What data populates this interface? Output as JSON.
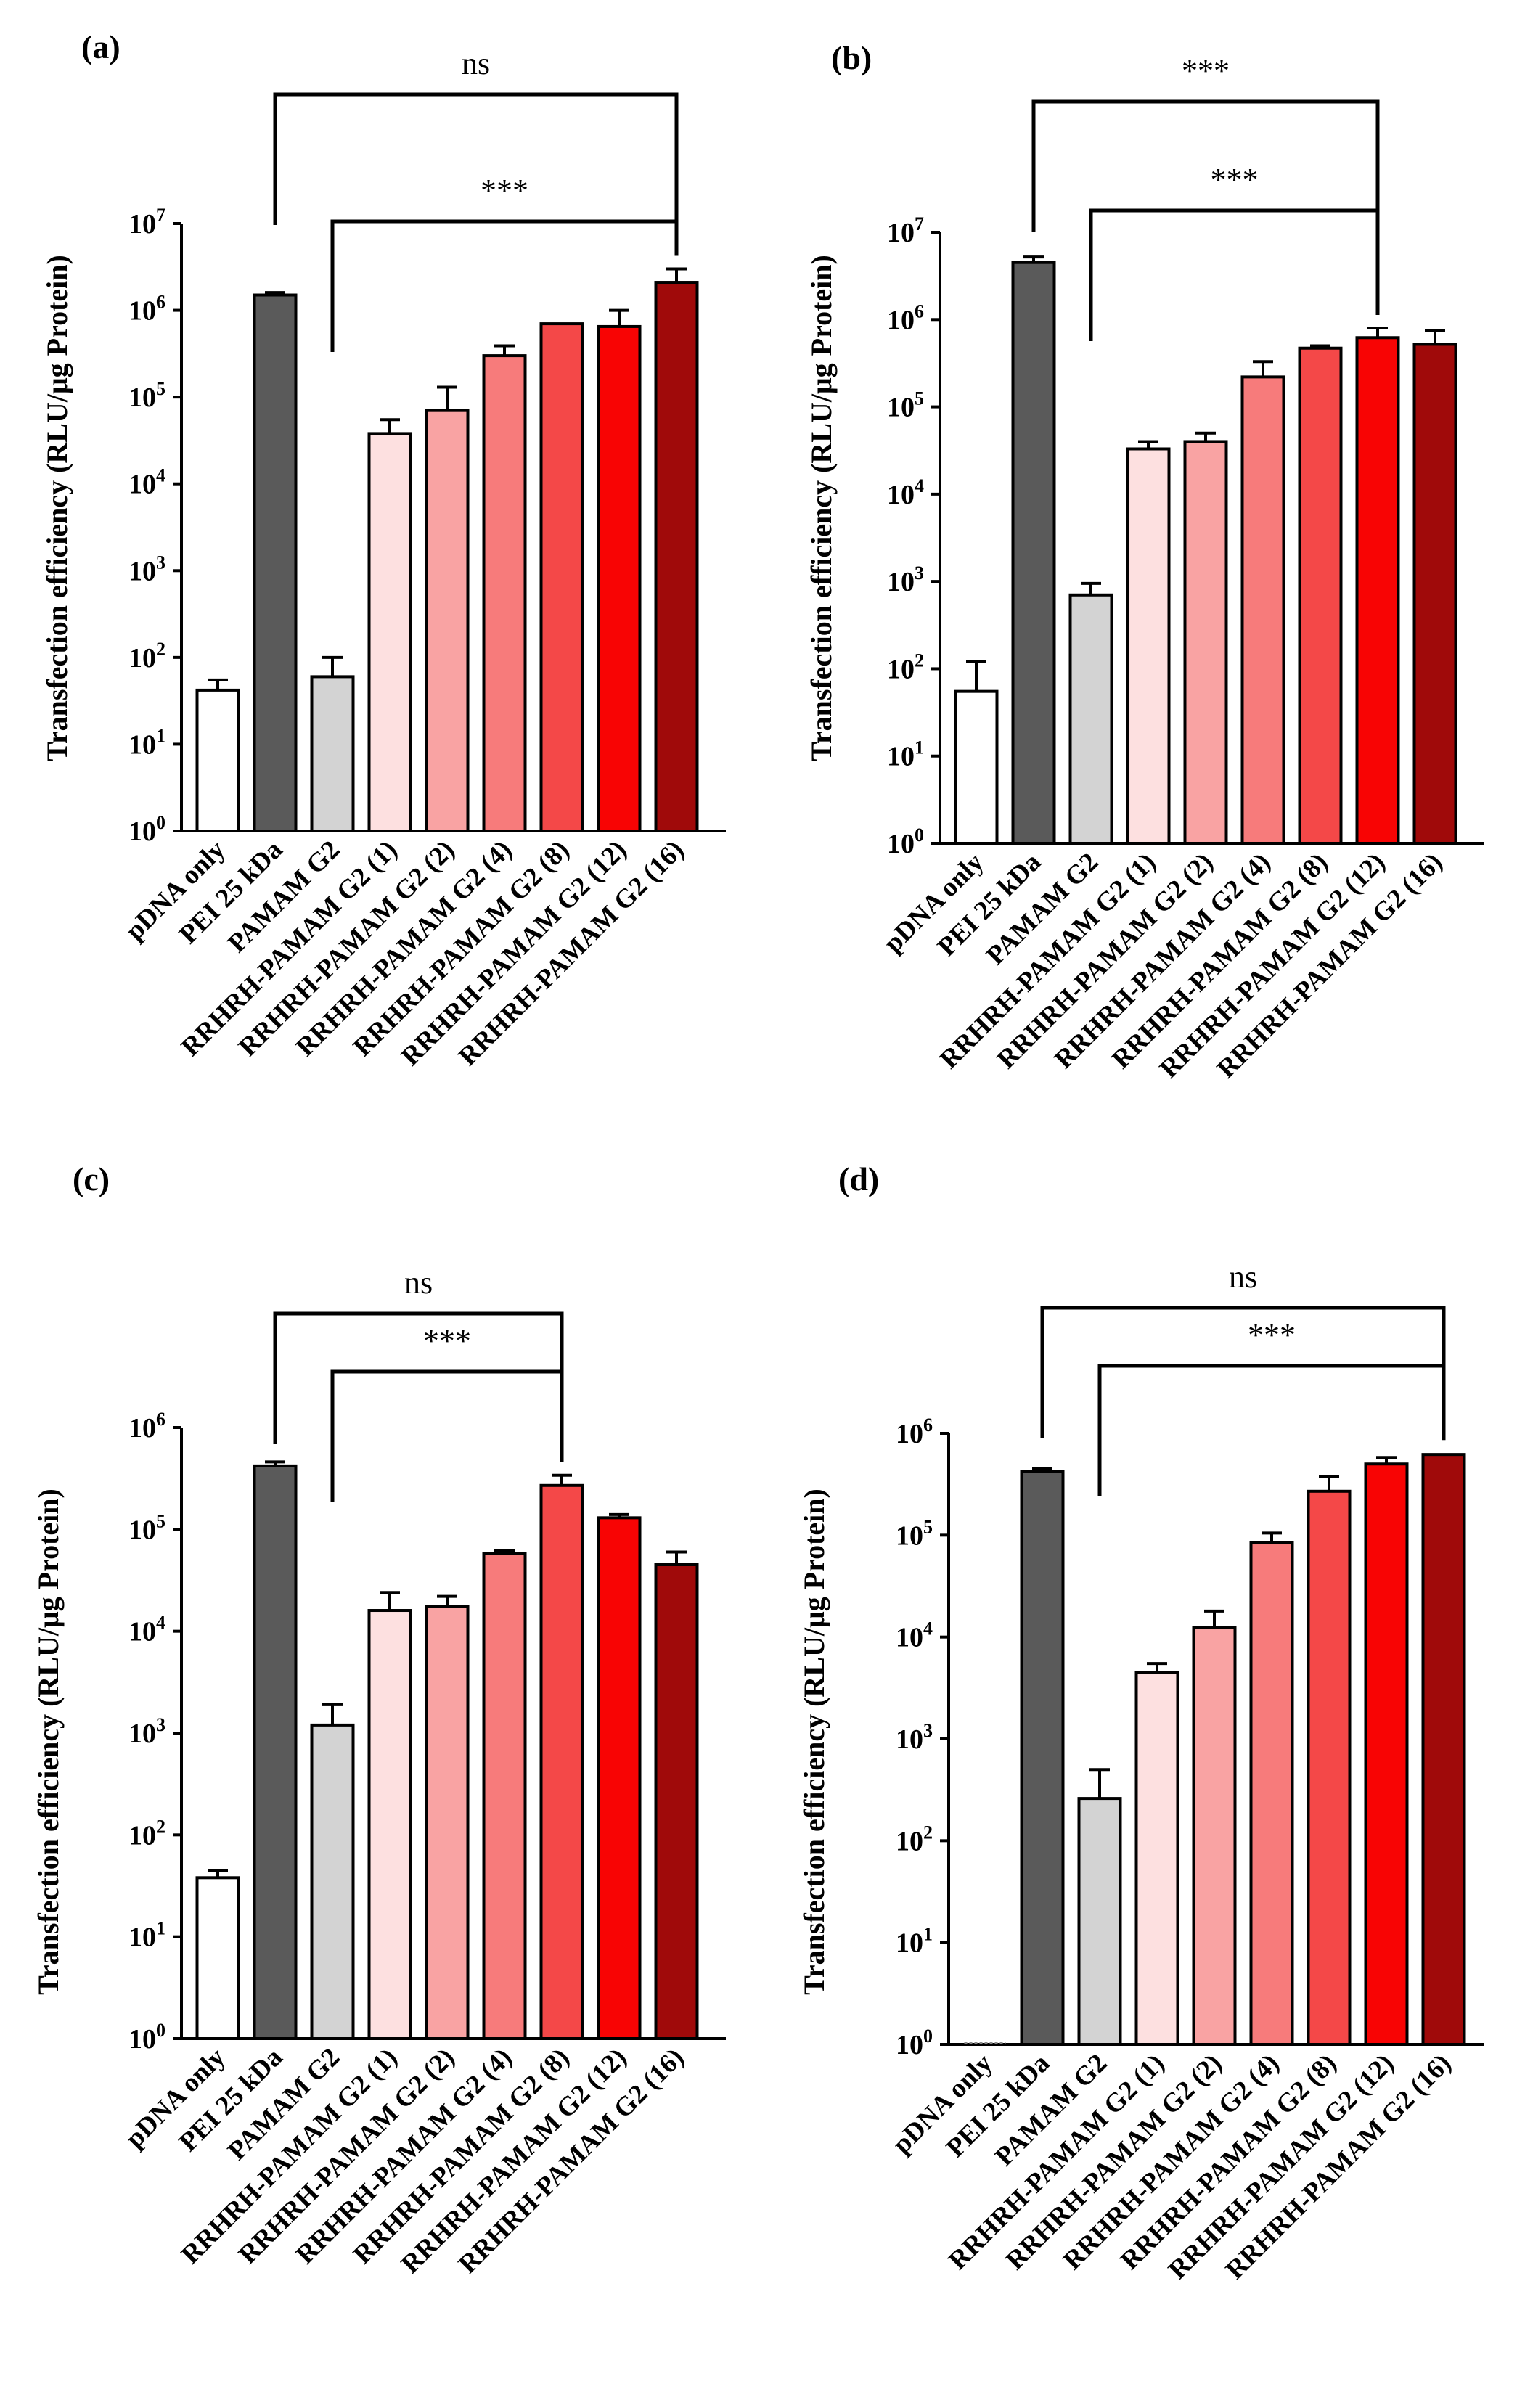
{
  "chart_data": [
    {
      "type": "bar",
      "panel_label": "(a)",
      "ylabel": "Transfection efficiency (RLU/μg Protein)",
      "yscale": "log",
      "ylim": [
        1,
        10000000
      ],
      "ytick_labels": [
        [
          "10",
          "0"
        ],
        [
          "10",
          "1"
        ],
        [
          "10",
          "2"
        ],
        [
          "10",
          "3"
        ],
        [
          "10",
          "4"
        ],
        [
          "10",
          "5"
        ],
        [
          "10",
          "6"
        ],
        [
          "10",
          "7"
        ]
      ],
      "categories": [
        "pDNA only",
        "PEI 25 kDa",
        "PAMAM G2",
        "RRHRH-PAMAM G2 (1)",
        "RRHRH-PAMAM G2 (2)",
        "RRHRH-PAMAM G2 (4)",
        "RRHRH-PAMAM G2 (8)",
        "RRHRH-PAMAM G2 (12)",
        "RRHRH-PAMAM G2 (16)"
      ],
      "values": [
        42,
        1500000,
        60,
        38000,
        70000,
        300000,
        700000,
        650000,
        2100000
      ],
      "error_upper": [
        55,
        1600000,
        100,
        55000,
        130000,
        390000,
        720000,
        1000000,
        3000000
      ],
      "colors": [
        "#ffffff",
        "#5a5a5a",
        "#d3d3d3",
        "#fde0e0",
        "#f9a3a3",
        "#f77b7b",
        "#f44848",
        "#f80404",
        "#a00a0a"
      ],
      "significance": [
        {
          "from": 1,
          "to": 8,
          "label": "ns"
        },
        {
          "from": 2,
          "to": 8,
          "label": "***"
        }
      ]
    },
    {
      "type": "bar",
      "panel_label": "(b)",
      "ylabel": "Transfection efficiency (RLU/μg Protein)",
      "yscale": "log",
      "ylim": [
        1,
        10000000
      ],
      "ytick_labels": [
        [
          "10",
          "0"
        ],
        [
          "10",
          "1"
        ],
        [
          "10",
          "2"
        ],
        [
          "10",
          "3"
        ],
        [
          "10",
          "4"
        ],
        [
          "10",
          "5"
        ],
        [
          "10",
          "6"
        ],
        [
          "10",
          "7"
        ]
      ],
      "categories": [
        "pDNA only",
        "PEI 25 kDa",
        "PAMAM G2",
        "RRHRH-PAMAM G2 (1)",
        "RRHRH-PAMAM G2 (2)",
        "RRHRH-PAMAM G2 (4)",
        "RRHRH-PAMAM G2 (8)",
        "RRHRH-PAMAM G2 (12)",
        "RRHRH-PAMAM G2 (16)"
      ],
      "values": [
        55,
        4500000,
        700,
        33000,
        40000,
        220000,
        470000,
        620000,
        520000
      ],
      "error_upper": [
        120,
        5200000,
        950,
        40000,
        50000,
        330000,
        500000,
        800000,
        750000
      ],
      "colors": [
        "#ffffff",
        "#5a5a5a",
        "#d3d3d3",
        "#fde0e0",
        "#f9a3a3",
        "#f77b7b",
        "#f44848",
        "#f80404",
        "#a00a0a"
      ],
      "significance": [
        {
          "from": 1,
          "to": 7,
          "label": "***"
        },
        {
          "from": 2,
          "to": 7,
          "label": "***"
        }
      ]
    },
    {
      "type": "bar",
      "panel_label": "(c)",
      "ylabel": "Transfection efficiency (RLU/μg Protein)",
      "yscale": "log",
      "ylim": [
        1,
        1000000
      ],
      "ytick_labels": [
        [
          "10",
          "0"
        ],
        [
          "10",
          "1"
        ],
        [
          "10",
          "2"
        ],
        [
          "10",
          "3"
        ],
        [
          "10",
          "4"
        ],
        [
          "10",
          "5"
        ],
        [
          "10",
          "6"
        ]
      ],
      "categories": [
        "pDNA only",
        "PEI 25 kDa",
        "PAMAM G2",
        "RRHRH-PAMAM G2 (1)",
        "RRHRH-PAMAM G2 (2)",
        "RRHRH-PAMAM G2 (4)",
        "RRHRH-PAMAM G2 (8)",
        "RRHRH-PAMAM G2 (12)",
        "RRHRH-PAMAM G2 (16)"
      ],
      "values": [
        38,
        420000,
        1200,
        16000,
        17500,
        58000,
        270000,
        130000,
        45000
      ],
      "error_upper": [
        45,
        460000,
        1900,
        24000,
        22000,
        62000,
        340000,
        140000,
        60000
      ],
      "colors": [
        "#ffffff",
        "#5a5a5a",
        "#d3d3d3",
        "#fde0e0",
        "#f9a3a3",
        "#f77b7b",
        "#f44848",
        "#f80404",
        "#a00a0a"
      ],
      "significance": [
        {
          "from": 1,
          "to": 6,
          "label": "ns"
        },
        {
          "from": 2,
          "to": 6,
          "label": "***"
        }
      ]
    },
    {
      "type": "bar",
      "panel_label": "(d)",
      "ylabel": "Transfection efficiency (RLU/μg Protein)",
      "yscale": "log",
      "ylim": [
        1,
        1000000
      ],
      "ytick_labels": [
        [
          "10",
          "0"
        ],
        [
          "10",
          "1"
        ],
        [
          "10",
          "2"
        ],
        [
          "10",
          "3"
        ],
        [
          "10",
          "4"
        ],
        [
          "10",
          "5"
        ],
        [
          "10",
          "6"
        ]
      ],
      "categories": [
        "pDNA only",
        "PEI 25 kDa",
        "PAMAM G2",
        "RRHRH-PAMAM G2 (1)",
        "RRHRH-PAMAM G2 (2)",
        "RRHRH-PAMAM G2 (4)",
        "RRHRH-PAMAM G2 (8)",
        "RRHRH-PAMAM G2 (12)",
        "RRHRH-PAMAM G2 (16)"
      ],
      "values": [
        1,
        420000,
        260,
        4500,
        12500,
        85000,
        270000,
        500000,
        620000
      ],
      "error_upper": [
        1,
        450000,
        500,
        5500,
        18000,
        105000,
        380000,
        580000,
        640000
      ],
      "colors": [
        "#ffffff",
        "#5a5a5a",
        "#d3d3d3",
        "#fde0e0",
        "#f9a3a3",
        "#f77b7b",
        "#f44848",
        "#f80404",
        "#a00a0a"
      ],
      "significance": [
        {
          "from": 1,
          "to": 8,
          "label": "ns"
        },
        {
          "from": 2,
          "to": 8,
          "label": "***"
        }
      ]
    }
  ]
}
